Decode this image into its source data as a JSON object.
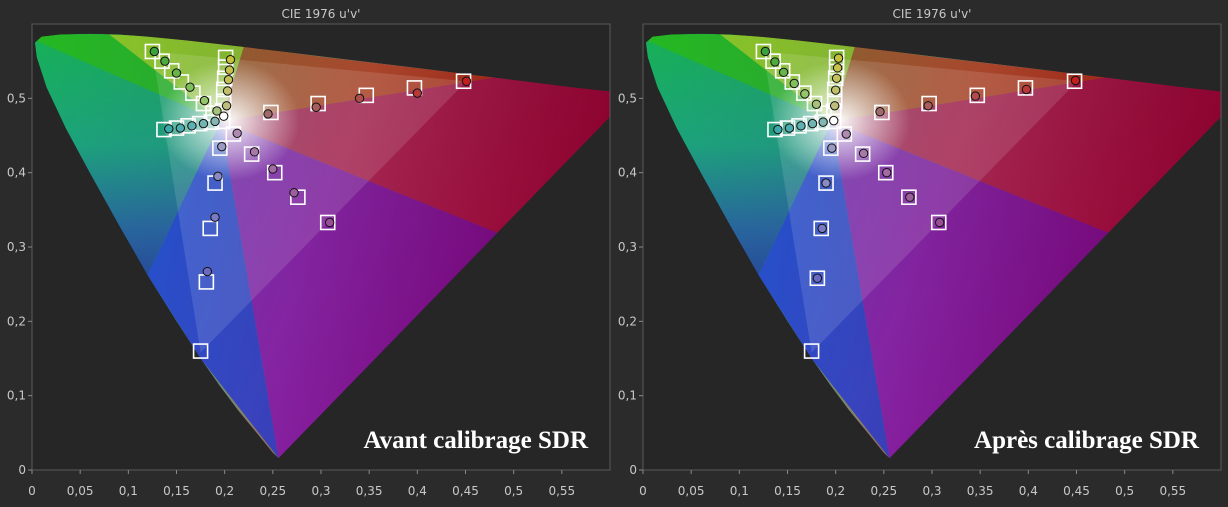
{
  "chart_data": [
    {
      "type": "scatter",
      "title": "CIE 1976 u'v'",
      "overlay_text": "Avant calibrage SDR",
      "xlim": [
        0,
        0.6
      ],
      "ylim": [
        0,
        0.6
      ],
      "x_ticks": [
        "0",
        "0,05",
        "0,1",
        "0,15",
        "0,2",
        "0,25",
        "0,3",
        "0,35",
        "0,4",
        "0,45",
        "0,5",
        "0,55"
      ],
      "y_ticks": [
        "0",
        "0,1",
        "0,2",
        "0,3",
        "0,4",
        "0,5"
      ],
      "targets": [
        {
          "u": 0.125,
          "v": 0.563
        },
        {
          "u": 0.135,
          "v": 0.55
        },
        {
          "u": 0.145,
          "v": 0.537
        },
        {
          "u": 0.155,
          "v": 0.522
        },
        {
          "u": 0.167,
          "v": 0.507
        },
        {
          "u": 0.178,
          "v": 0.493
        },
        {
          "u": 0.188,
          "v": 0.48
        },
        {
          "u": 0.201,
          "v": 0.555
        },
        {
          "u": 0.201,
          "v": 0.542
        },
        {
          "u": 0.2,
          "v": 0.527
        },
        {
          "u": 0.199,
          "v": 0.512
        },
        {
          "u": 0.199,
          "v": 0.496
        },
        {
          "u": 0.198,
          "v": 0.483
        },
        {
          "u": 0.448,
          "v": 0.523
        },
        {
          "u": 0.397,
          "v": 0.514
        },
        {
          "u": 0.347,
          "v": 0.504
        },
        {
          "u": 0.297,
          "v": 0.493
        },
        {
          "u": 0.248,
          "v": 0.481
        },
        {
          "u": 0.137,
          "v": 0.458
        },
        {
          "u": 0.15,
          "v": 0.46
        },
        {
          "u": 0.162,
          "v": 0.463
        },
        {
          "u": 0.174,
          "v": 0.466
        },
        {
          "u": 0.186,
          "v": 0.468
        },
        {
          "u": 0.209,
          "v": 0.452
        },
        {
          "u": 0.228,
          "v": 0.425
        },
        {
          "u": 0.252,
          "v": 0.4
        },
        {
          "u": 0.276,
          "v": 0.367
        },
        {
          "u": 0.307,
          "v": 0.333
        },
        {
          "u": 0.195,
          "v": 0.433
        },
        {
          "u": 0.19,
          "v": 0.386
        },
        {
          "u": 0.185,
          "v": 0.325
        },
        {
          "u": 0.181,
          "v": 0.253
        },
        {
          "u": 0.175,
          "v": 0.16
        },
        {
          "u": 0.198,
          "v": 0.469
        }
      ],
      "measured": [
        {
          "u": 0.127,
          "v": 0.563,
          "color": "#3aa23a"
        },
        {
          "u": 0.138,
          "v": 0.55,
          "color": "#4daa3d"
        },
        {
          "u": 0.15,
          "v": 0.534,
          "color": "#66b54a"
        },
        {
          "u": 0.164,
          "v": 0.515,
          "color": "#7fbf5c"
        },
        {
          "u": 0.179,
          "v": 0.497,
          "color": "#93c56b"
        },
        {
          "u": 0.192,
          "v": 0.483,
          "color": "#a6c27a"
        },
        {
          "u": 0.206,
          "v": 0.552,
          "color": "#c6c13a"
        },
        {
          "u": 0.205,
          "v": 0.538,
          "color": "#c6c14a"
        },
        {
          "u": 0.204,
          "v": 0.525,
          "color": "#c4c05a"
        },
        {
          "u": 0.203,
          "v": 0.51,
          "color": "#c2bf6a"
        },
        {
          "u": 0.202,
          "v": 0.49,
          "color": "#bfbd7c"
        },
        {
          "u": 0.451,
          "v": 0.523,
          "color": "#c22020"
        },
        {
          "u": 0.4,
          "v": 0.507,
          "color": "#b83838"
        },
        {
          "u": 0.34,
          "v": 0.5,
          "color": "#b04c4c"
        },
        {
          "u": 0.295,
          "v": 0.488,
          "color": "#a85c5c"
        },
        {
          "u": 0.245,
          "v": 0.479,
          "color": "#a06a6a"
        },
        {
          "u": 0.142,
          "v": 0.459,
          "color": "#3aaaaa"
        },
        {
          "u": 0.154,
          "v": 0.46,
          "color": "#4caeae"
        },
        {
          "u": 0.166,
          "v": 0.463,
          "color": "#5eb2b2"
        },
        {
          "u": 0.178,
          "v": 0.466,
          "color": "#70b4b4"
        },
        {
          "u": 0.19,
          "v": 0.469,
          "color": "#84b6b6"
        },
        {
          "u": 0.213,
          "v": 0.453,
          "color": "#b08ab0"
        },
        {
          "u": 0.231,
          "v": 0.428,
          "color": "#a878a8"
        },
        {
          "u": 0.25,
          "v": 0.405,
          "color": "#a46aa4"
        },
        {
          "u": 0.272,
          "v": 0.373,
          "color": "#9e5e9e"
        },
        {
          "u": 0.309,
          "v": 0.333,
          "color": "#9a4e9a"
        },
        {
          "u": 0.197,
          "v": 0.435,
          "color": "#9a9ac4"
        },
        {
          "u": 0.193,
          "v": 0.395,
          "color": "#8a8ac4"
        },
        {
          "u": 0.19,
          "v": 0.34,
          "color": "#7a7ac4"
        },
        {
          "u": 0.182,
          "v": 0.267,
          "color": "#6a6ac4"
        },
        {
          "u": 0.199,
          "v": 0.476,
          "color": "#ffffff"
        }
      ]
    },
    {
      "type": "scatter",
      "title": "CIE 1976 u'v'",
      "overlay_text": "Après calibrage SDR",
      "xlim": [
        0,
        0.6
      ],
      "ylim": [
        0,
        0.6
      ],
      "x_ticks": [
        "0",
        "0,05",
        "0,1",
        "0,15",
        "0,2",
        "0,25",
        "0,3",
        "0,35",
        "0,4",
        "0,45",
        "0,5",
        "0,55"
      ],
      "y_ticks": [
        "0",
        "0,1",
        "0,2",
        "0,3",
        "0,4",
        "0,5"
      ],
      "targets": [
        {
          "u": 0.125,
          "v": 0.563
        },
        {
          "u": 0.135,
          "v": 0.55
        },
        {
          "u": 0.145,
          "v": 0.537
        },
        {
          "u": 0.155,
          "v": 0.522
        },
        {
          "u": 0.167,
          "v": 0.507
        },
        {
          "u": 0.178,
          "v": 0.493
        },
        {
          "u": 0.188,
          "v": 0.48
        },
        {
          "u": 0.201,
          "v": 0.555
        },
        {
          "u": 0.201,
          "v": 0.542
        },
        {
          "u": 0.2,
          "v": 0.527
        },
        {
          "u": 0.199,
          "v": 0.512
        },
        {
          "u": 0.199,
          "v": 0.496
        },
        {
          "u": 0.198,
          "v": 0.483
        },
        {
          "u": 0.448,
          "v": 0.523
        },
        {
          "u": 0.397,
          "v": 0.514
        },
        {
          "u": 0.347,
          "v": 0.504
        },
        {
          "u": 0.297,
          "v": 0.493
        },
        {
          "u": 0.248,
          "v": 0.481
        },
        {
          "u": 0.137,
          "v": 0.458
        },
        {
          "u": 0.15,
          "v": 0.46
        },
        {
          "u": 0.162,
          "v": 0.463
        },
        {
          "u": 0.174,
          "v": 0.466
        },
        {
          "u": 0.186,
          "v": 0.468
        },
        {
          "u": 0.209,
          "v": 0.452
        },
        {
          "u": 0.228,
          "v": 0.425
        },
        {
          "u": 0.252,
          "v": 0.4
        },
        {
          "u": 0.276,
          "v": 0.367
        },
        {
          "u": 0.307,
          "v": 0.333
        },
        {
          "u": 0.195,
          "v": 0.433
        },
        {
          "u": 0.19,
          "v": 0.386
        },
        {
          "u": 0.185,
          "v": 0.325
        },
        {
          "u": 0.181,
          "v": 0.258
        },
        {
          "u": 0.175,
          "v": 0.16
        },
        {
          "u": 0.198,
          "v": 0.469
        }
      ],
      "measured": [
        {
          "u": 0.127,
          "v": 0.563,
          "color": "#3aa23a"
        },
        {
          "u": 0.137,
          "v": 0.549,
          "color": "#4daa3d"
        },
        {
          "u": 0.146,
          "v": 0.535,
          "color": "#66b54a"
        },
        {
          "u": 0.157,
          "v": 0.52,
          "color": "#7fbf5c"
        },
        {
          "u": 0.168,
          "v": 0.506,
          "color": "#93c56b"
        },
        {
          "u": 0.18,
          "v": 0.492,
          "color": "#a6c27a"
        },
        {
          "u": 0.203,
          "v": 0.554,
          "color": "#c6c13a"
        },
        {
          "u": 0.202,
          "v": 0.541,
          "color": "#c6c14a"
        },
        {
          "u": 0.201,
          "v": 0.527,
          "color": "#c4c05a"
        },
        {
          "u": 0.2,
          "v": 0.511,
          "color": "#c2bf6a"
        },
        {
          "u": 0.199,
          "v": 0.49,
          "color": "#bfbd7c"
        },
        {
          "u": 0.449,
          "v": 0.524,
          "color": "#c22020"
        },
        {
          "u": 0.398,
          "v": 0.512,
          "color": "#b83838"
        },
        {
          "u": 0.345,
          "v": 0.503,
          "color": "#b04c4c"
        },
        {
          "u": 0.296,
          "v": 0.49,
          "color": "#a85c5c"
        },
        {
          "u": 0.246,
          "v": 0.482,
          "color": "#a06a6a"
        },
        {
          "u": 0.14,
          "v": 0.458,
          "color": "#3aaaaa"
        },
        {
          "u": 0.152,
          "v": 0.46,
          "color": "#4caeae"
        },
        {
          "u": 0.164,
          "v": 0.463,
          "color": "#5eb2b2"
        },
        {
          "u": 0.176,
          "v": 0.466,
          "color": "#70b4b4"
        },
        {
          "u": 0.187,
          "v": 0.468,
          "color": "#84b6b6"
        },
        {
          "u": 0.211,
          "v": 0.452,
          "color": "#b08ab0"
        },
        {
          "u": 0.229,
          "v": 0.426,
          "color": "#a878a8"
        },
        {
          "u": 0.253,
          "v": 0.4,
          "color": "#a46aa4"
        },
        {
          "u": 0.277,
          "v": 0.367,
          "color": "#9e5e9e"
        },
        {
          "u": 0.308,
          "v": 0.333,
          "color": "#9a4e9a"
        },
        {
          "u": 0.196,
          "v": 0.433,
          "color": "#9a9ac4"
        },
        {
          "u": 0.19,
          "v": 0.386,
          "color": "#8a8ac4"
        },
        {
          "u": 0.186,
          "v": 0.325,
          "color": "#7a7ac4"
        },
        {
          "u": 0.181,
          "v": 0.258,
          "color": "#6a6ac4"
        },
        {
          "u": 0.198,
          "v": 0.47,
          "color": "#ffffff"
        }
      ]
    }
  ]
}
